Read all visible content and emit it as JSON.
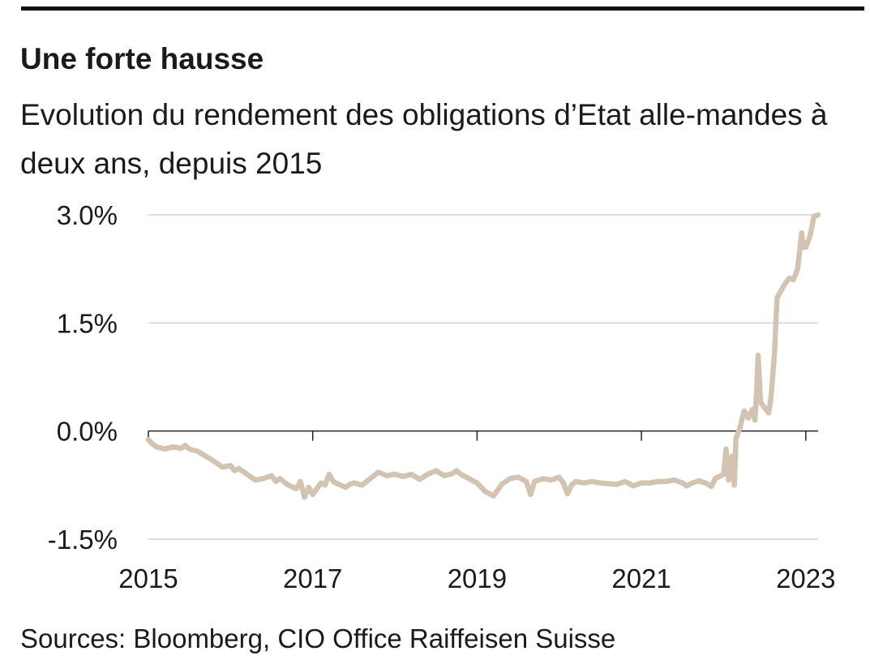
{
  "header": {
    "title": "Une forte hausse",
    "subtitle": "Evolution du rendement des obligations d’Etat alle-mandes à deux ans, depuis 2015"
  },
  "footer": {
    "source": "Sources: Bloomberg, CIO Office Raiffeisen Suisse"
  },
  "colors": {
    "line": "#d3c3b3",
    "grid": "#c8c8c8",
    "axis": "#222222"
  },
  "chart_data": {
    "type": "line",
    "title": "Une forte hausse",
    "subtitle": "Evolution du rendement des obligations d’Etat alle-mandes à deux ans, depuis 2015",
    "xlabel": "",
    "ylabel": "",
    "xlim": [
      2015.0,
      2023.15
    ],
    "ylim": [
      -1.5,
      3.0
    ],
    "x_ticks": [
      2015,
      2017,
      2019,
      2021,
      2023
    ],
    "x_tick_labels": [
      "2015",
      "2017",
      "2019",
      "2021",
      "2023"
    ],
    "y_ticks": [
      3.0,
      1.5,
      0.0,
      -1.5
    ],
    "y_tick_labels": [
      "3.0%",
      "1.5%",
      "0.0%",
      "-1.5%"
    ],
    "grid": "horizontal",
    "legend": "none",
    "series": [
      {
        "x": [
          2015.0,
          2015.05,
          2015.1,
          2015.2,
          2015.3,
          2015.4,
          2015.45,
          2015.5,
          2015.6,
          2015.7,
          2015.8,
          2015.9,
          2016.0,
          2016.05,
          2016.1,
          2016.2,
          2016.3,
          2016.4,
          2016.5,
          2016.55,
          2016.6,
          2016.7,
          2016.8,
          2016.85,
          2016.9,
          2016.95,
          2017.0,
          2017.05,
          2017.1,
          2017.15,
          2017.2,
          2017.25,
          2017.3,
          2017.4,
          2017.45,
          2017.5,
          2017.6,
          2017.7,
          2017.8,
          2017.9,
          2018.0,
          2018.1,
          2018.2,
          2018.3,
          2018.4,
          2018.5,
          2018.6,
          2018.7,
          2018.75,
          2018.8,
          2018.9,
          2019.0,
          2019.1,
          2019.2,
          2019.3,
          2019.4,
          2019.5,
          2019.6,
          2019.65,
          2019.7,
          2019.8,
          2019.9,
          2020.0,
          2020.05,
          2020.1,
          2020.15,
          2020.2,
          2020.3,
          2020.4,
          2020.5,
          2020.6,
          2020.7,
          2020.8,
          2020.9,
          2021.0,
          2021.1,
          2021.2,
          2021.3,
          2021.4,
          2021.5,
          2021.55,
          2021.6,
          2021.7,
          2021.8,
          2021.85,
          2021.9,
          2022.0,
          2022.03,
          2022.06,
          2022.1,
          2022.13,
          2022.15,
          2022.2,
          2022.25,
          2022.3,
          2022.35,
          2022.38,
          2022.4,
          2022.42,
          2022.45,
          2022.5,
          2022.55,
          2022.58,
          2022.62,
          2022.65,
          2022.7,
          2022.75,
          2022.8,
          2022.85,
          2022.9,
          2022.95,
          2022.97,
          2023.0,
          2023.05,
          2023.1,
          2023.15
        ],
        "y": [
          -0.12,
          -0.18,
          -0.22,
          -0.25,
          -0.22,
          -0.24,
          -0.2,
          -0.25,
          -0.28,
          -0.35,
          -0.42,
          -0.5,
          -0.48,
          -0.55,
          -0.52,
          -0.6,
          -0.68,
          -0.66,
          -0.62,
          -0.7,
          -0.66,
          -0.75,
          -0.8,
          -0.7,
          -0.92,
          -0.78,
          -0.88,
          -0.8,
          -0.72,
          -0.75,
          -0.6,
          -0.7,
          -0.73,
          -0.78,
          -0.74,
          -0.72,
          -0.75,
          -0.66,
          -0.57,
          -0.62,
          -0.6,
          -0.63,
          -0.6,
          -0.67,
          -0.6,
          -0.55,
          -0.62,
          -0.59,
          -0.55,
          -0.6,
          -0.66,
          -0.72,
          -0.84,
          -0.9,
          -0.74,
          -0.66,
          -0.64,
          -0.7,
          -0.88,
          -0.7,
          -0.66,
          -0.68,
          -0.64,
          -0.72,
          -0.87,
          -0.75,
          -0.7,
          -0.72,
          -0.7,
          -0.72,
          -0.73,
          -0.74,
          -0.7,
          -0.76,
          -0.72,
          -0.72,
          -0.7,
          -0.7,
          -0.68,
          -0.72,
          -0.76,
          -0.73,
          -0.69,
          -0.73,
          -0.77,
          -0.66,
          -0.6,
          -0.25,
          -0.68,
          -0.35,
          -0.75,
          -0.1,
          0.05,
          0.28,
          0.18,
          0.3,
          0.15,
          0.5,
          1.05,
          0.4,
          0.32,
          0.25,
          0.5,
          1.1,
          1.85,
          1.95,
          2.05,
          2.12,
          2.1,
          2.25,
          2.75,
          2.55,
          2.55,
          2.7,
          2.98,
          3.0
        ]
      }
    ]
  }
}
